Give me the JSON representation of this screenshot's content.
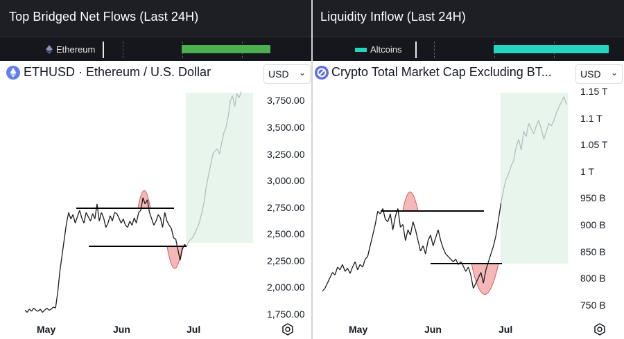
{
  "left_panel": {
    "header_title": "Top Bridged Net Flows (Last 24H)",
    "legend_label": "Ethereum",
    "legend_icon": "ethereum-diamond-icon",
    "flow_color": "#4caf50",
    "symbol_title": "ETHUSD · Ethereum / U.S. Dollar",
    "currency": "USD",
    "price_axis": [
      "3,750.00",
      "3,500.00",
      "3,250.00",
      "3,000.00",
      "2,750.00",
      "2,500.00",
      "2,250.00",
      "2,000.00",
      "1,750.00"
    ],
    "time_axis": [
      "May",
      "Jun",
      "Jul"
    ]
  },
  "right_panel": {
    "header_title": "Liquidity Inflow (Last 24H)",
    "legend_label": "Altcoins",
    "flow_color": "#26d4c2",
    "symbol_title": "Crypto Total Market Cap Excluding BT...",
    "currency": "USD",
    "price_axis": [
      "1.15 T",
      "1.1 T",
      "1.05 T",
      "1 T",
      "950 B",
      "900 B",
      "850 B",
      "800 B",
      "750 B"
    ],
    "time_axis": [
      "May",
      "Jun",
      "Jul"
    ]
  },
  "chart_data": [
    {
      "type": "line",
      "series": [
        {
          "values": [
            1780,
            1760,
            1790,
            1770,
            1800,
            1780,
            1770,
            1790,
            1760,
            1780,
            1800,
            1780,
            1790,
            1810,
            1800,
            1950,
            2150,
            2300,
            2450,
            2600,
            2700,
            2640,
            2680,
            2600,
            2660,
            2720,
            2650,
            2600,
            2700,
            2660,
            2620,
            2690,
            2640,
            2780,
            2620,
            2700,
            2650,
            2560,
            2600,
            2670,
            2620,
            2700,
            2690,
            2650,
            2600,
            2640,
            2580,
            2560,
            2620,
            2580,
            2650,
            2600,
            2700,
            2720,
            2840,
            2780,
            2820,
            2700,
            2640,
            2580,
            2620,
            2680,
            2650,
            2560,
            2700,
            2620,
            2580,
            2550,
            2460,
            2450,
            2350,
            2250,
            2350,
            2400,
            2380,
            2430,
            2450,
            2470,
            2520,
            2560,
            2620,
            2700,
            2800,
            2950,
            3050,
            3150,
            3250,
            3280,
            3300,
            3250,
            3350,
            3450,
            3500,
            3600,
            3750,
            3800,
            3700,
            3820,
            3780,
            3840
          ]
        }
      ],
      "ylim": [
        1700,
        3850
      ]
    },
    {
      "type": "line",
      "series": [
        {
          "values": [
            775,
            780,
            790,
            800,
            810,
            805,
            820,
            815,
            825,
            812,
            818,
            808,
            820,
            830,
            815,
            825,
            820,
            835,
            840,
            860,
            880,
            900,
            925,
            920,
            930,
            910,
            905,
            920,
            890,
            915,
            930,
            895,
            900,
            870,
            890,
            880,
            905,
            890,
            870,
            850,
            860,
            845,
            870,
            880,
            860,
            875,
            890,
            870,
            855,
            845,
            840,
            835,
            830,
            835,
            825,
            830,
            822,
            812,
            820,
            805,
            780,
            790,
            800,
            810,
            790,
            815,
            830,
            845,
            860,
            880,
            910,
            940,
            965,
            985,
            995,
            1010,
            1020,
            1045,
            1060,
            1040,
            1075,
            1065,
            1090,
            1080,
            1070,
            1085,
            1095,
            1080,
            1060,
            1075,
            1090,
            1085,
            1095,
            1110,
            1120,
            1130,
            1140,
            1125
          ]
        }
      ],
      "ylim": [
        730,
        1165
      ]
    }
  ]
}
